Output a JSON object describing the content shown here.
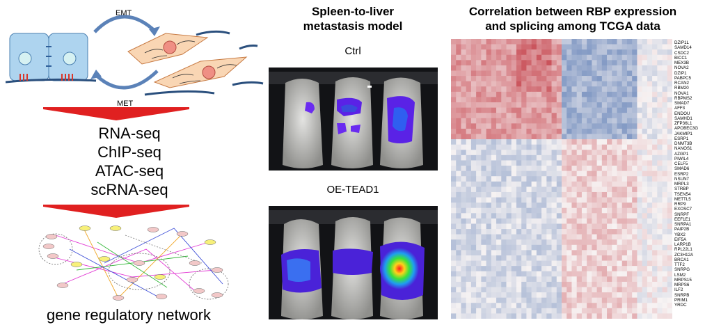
{
  "left": {
    "emt_label": "EMT",
    "met_label": "MET",
    "seq_methods": [
      "RNA-seq",
      "ChIP-seq",
      "ATAC-seq",
      "scRNA-seq"
    ],
    "network_caption": "gene regulatory network"
  },
  "middle": {
    "title_line1": "Spleen-to-liver",
    "title_line2": "metastasis model",
    "ctrl_label": "Ctrl",
    "oe_label": "OE-TEAD1"
  },
  "right": {
    "title_line1": "Correlation between RBP expression",
    "title_line2": "and splicing among TCGA data",
    "genes": [
      "DZIP1L",
      "SAMD14",
      "CSDC2",
      "BICC1",
      "MEX3B",
      "NOVA2",
      "DZIP1",
      "PABPC5",
      "RCAN2",
      "RBM20",
      "NOVA1",
      "RBPMS2",
      "SMAD7",
      "AFF3",
      "ENDOU",
      "SAMHD1",
      "ZFP36L1",
      "APOBEC3G",
      "JAKMIP1",
      "ESRP1",
      "DNMT3B",
      "NANOS1",
      "AZGP1",
      "PIWIL4",
      "CELF5",
      "SMAD6",
      "ESRP2",
      "NSUN7",
      "MRPL3",
      "STRBP",
      "TSEN54",
      "METTL5",
      "RRP9",
      "EXOSC7",
      "SNRPF",
      "EEF1E1",
      "SNRPA1",
      "PAIP2B",
      "YBX2",
      "EIF5A",
      "LARP1B",
      "RPL22L1",
      "ZC3H12A",
      "BRCA1",
      "TTF2",
      "SNRPG",
      "LSM2",
      "MRPS15",
      "MRPS6",
      "ILF2",
      "SNRPB",
      "PRIM1",
      "YRDC"
    ]
  },
  "colors": {
    "arrow_red": "#e02020",
    "cell_blue": "#aed4ef",
    "mesenchymal_orange": "#f9d6b4",
    "heatmap_red": "#c0303a",
    "heatmap_blue": "#3d64a8"
  }
}
